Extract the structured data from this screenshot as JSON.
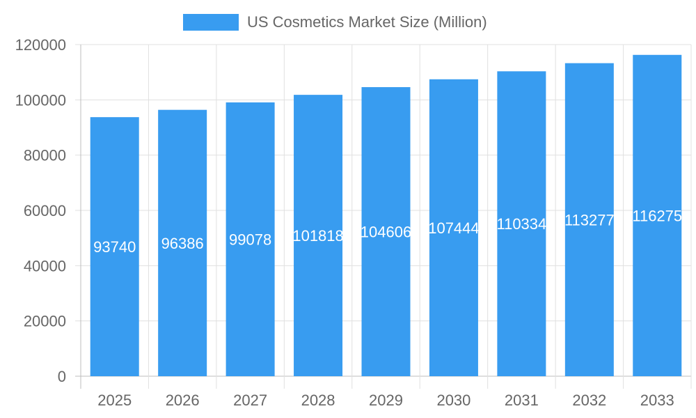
{
  "chart_data": {
    "type": "bar",
    "categories": [
      "2025",
      "2026",
      "2027",
      "2028",
      "2029",
      "2030",
      "2031",
      "2032",
      "2033"
    ],
    "series": [
      {
        "name": "US Cosmetics Market Size (Million)",
        "values": [
          93740,
          96386,
          99078,
          101818,
          104606,
          107444,
          110334,
          113277,
          116275
        ]
      }
    ],
    "data_labels": [
      "93740",
      "96386",
      "99078",
      "101818",
      "104606",
      "107444",
      "110334",
      "113277",
      "116275"
    ],
    "ylim": [
      0,
      120000
    ],
    "yticks": [
      "0",
      "20000",
      "40000",
      "60000",
      "80000",
      "100000",
      "120000"
    ],
    "grid": true,
    "legend_position": "top",
    "colors": {
      "bar": "#389cf0",
      "grid": "#e0e0e0",
      "axis": "#bdbdbd",
      "text": "#666666",
      "label": "#ffffff"
    }
  }
}
